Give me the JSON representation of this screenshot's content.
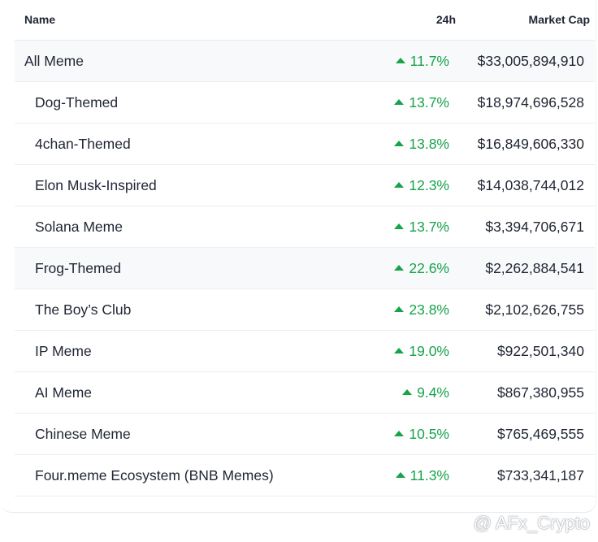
{
  "table": {
    "columns": [
      "Name",
      "24h",
      "Market Cap"
    ],
    "rows": [
      [
        "All Meme",
        "11.7%",
        "$33,005,894,910"
      ],
      [
        "Dog-Themed",
        "13.7%",
        "$18,974,696,528"
      ],
      [
        "4chan-Themed",
        "13.8%",
        "$16,849,606,330"
      ],
      [
        "Elon Musk-Inspired",
        "12.3%",
        "$14,038,744,012"
      ],
      [
        "Solana Meme",
        "13.7%",
        "$3,394,706,671"
      ],
      [
        "Frog-Themed",
        "22.6%",
        "$2,262,884,541"
      ],
      [
        "The Boy’s Club",
        "23.8%",
        "$2,102,626,755"
      ],
      [
        "IP Meme",
        "19.0%",
        "$922,501,340"
      ],
      [
        "AI Meme",
        "9.4%",
        "$867,380,955"
      ],
      [
        "Chinese Meme",
        "10.5%",
        "$765,469,555"
      ],
      [
        "Four.meme Ecosystem (BNB Memes)",
        "11.3%",
        "$733,341,187"
      ]
    ]
  },
  "watermark": "@ AFx_Crypto"
}
